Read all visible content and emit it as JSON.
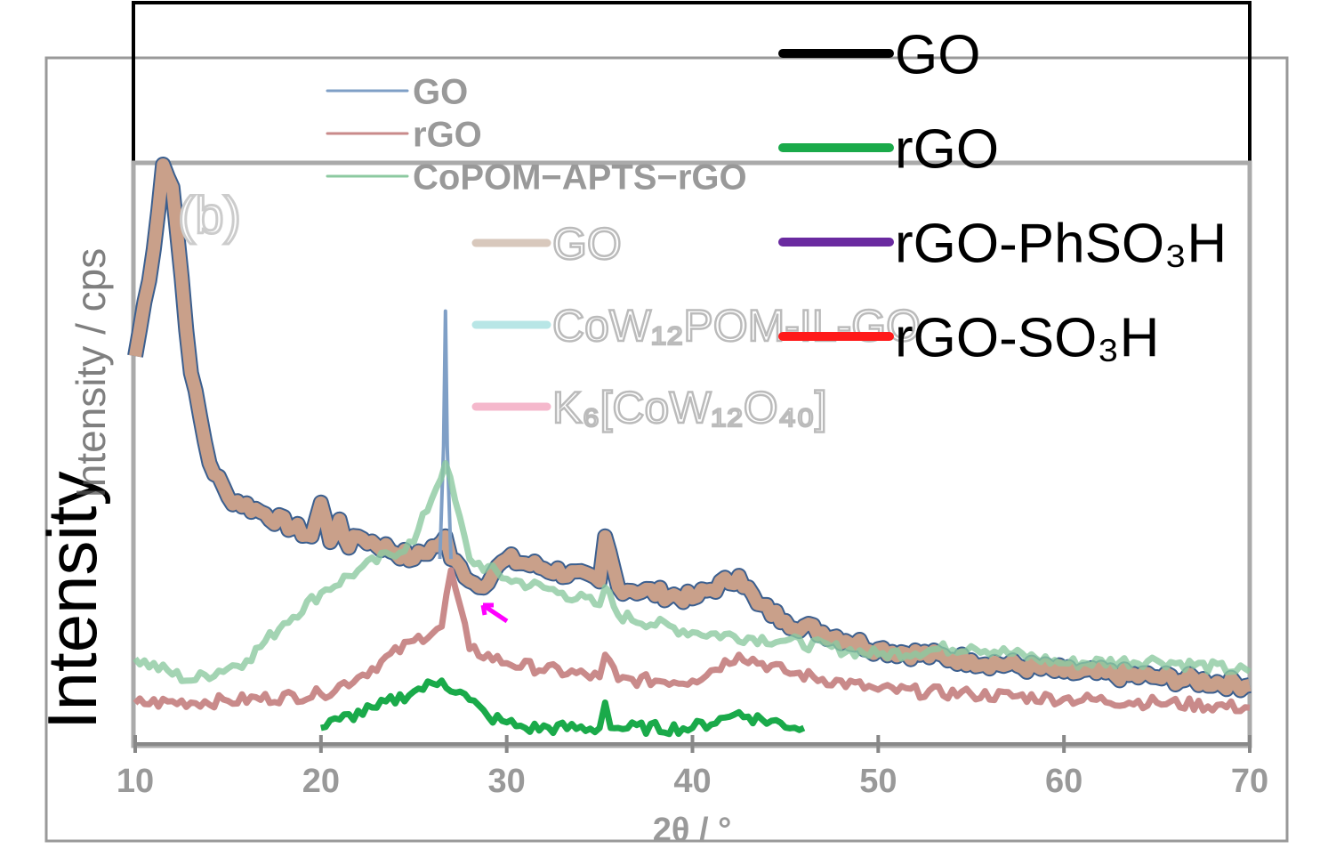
{
  "chart_data": {
    "type": "line",
    "panel_label": "(b)",
    "xlabel": "2θ / °",
    "ylabels": [
      "Intensity",
      "Intensity / cps"
    ],
    "xlim": [
      10,
      70
    ],
    "xticks": [
      "10",
      "20",
      "30",
      "40",
      "50",
      "60",
      "70"
    ],
    "ylim": [
      0,
      100
    ],
    "grid": false,
    "legends": [
      {
        "placement": "top-left",
        "style": "gray",
        "entries": [
          {
            "name": "GO",
            "color": "#7f9fc6"
          },
          {
            "name": "rGO",
            "color": "#c98a8a"
          },
          {
            "name": "CoPOM−APTS−rGO",
            "color": "#8cc9a0"
          }
        ]
      },
      {
        "placement": "top-center",
        "style": "outlined",
        "entries": [
          {
            "name": "GO",
            "color": "#d8c8bc"
          },
          {
            "name": "CoW₁₂POM-IL-GO",
            "color": "#b8e6e6"
          },
          {
            "name": "K₆[CoW₁₂O₄₀]",
            "color": "#f5b8cc"
          }
        ]
      },
      {
        "placement": "top-right",
        "style": "black",
        "entries": [
          {
            "name": "GO",
            "color": "#000000"
          },
          {
            "name": "rGO",
            "color": "#1aaa4a"
          },
          {
            "name": "rGO-PhSO₃H",
            "color": "#6a2aa0"
          },
          {
            "name": "rGO-SO₃H",
            "color": "#ff1a1a"
          }
        ]
      }
    ],
    "series": [
      {
        "color": "#c9a08a",
        "x": [
          10,
          11,
          11.5,
          12,
          12.5,
          13,
          14,
          15,
          17,
          19.5,
          20,
          20.5,
          21,
          21.5,
          22,
          25,
          26.5,
          26.7,
          27,
          28.5,
          30,
          35,
          35.3,
          36,
          40,
          42.5,
          43.5,
          45,
          50,
          55,
          60,
          65,
          70
        ],
        "y": [
          66,
          85,
          100,
          96,
          80,
          63,
          47,
          41,
          38,
          34,
          40,
          33,
          37,
          32,
          34,
          30,
          33,
          34,
          30,
          25,
          30,
          26,
          34,
          25,
          23,
          27,
          22,
          19,
          14,
          12,
          10,
          9,
          7.6
        ]
      },
      {
        "color": "#7f9fc6",
        "x": [
          26.4,
          26.6,
          26.7,
          26.8,
          27
        ],
        "y": [
          30,
          50,
          74,
          50,
          30
        ]
      },
      {
        "color": "#8cc9a0",
        "x": [
          10,
          13,
          16,
          18,
          20,
          22,
          25,
          26.7,
          28,
          30,
          33,
          35,
          35.3,
          36,
          40,
          45,
          50,
          55,
          60,
          65,
          70
        ],
        "y": [
          12.3,
          8.4,
          12,
          18.6,
          24,
          28,
          33,
          47,
          30,
          26.5,
          24,
          21.8,
          25,
          20,
          17,
          15.5,
          13,
          14.5,
          11.5,
          12,
          10
        ]
      },
      {
        "color": "#c98a8a",
        "x": [
          10,
          15,
          20,
          22,
          25,
          26.5,
          27,
          28,
          30,
          35,
          35.3,
          36,
          40,
          42.5,
          45,
          50,
          55,
          60,
          65,
          70
        ],
        "y": [
          4.4,
          4.8,
          6,
          9,
          15.5,
          18,
          28,
          14,
          11.5,
          9,
          13,
          8.5,
          8.4,
          13,
          10,
          6.8,
          6,
          5.2,
          4.5,
          3.6
        ]
      },
      {
        "color": "#1aaa4a",
        "x": [
          20,
          21,
          23,
          25,
          26.5,
          28,
          29,
          30,
          31,
          35,
          35.3,
          35.6,
          36,
          40,
          42,
          42.5,
          43,
          46
        ],
        "y": [
          0,
          1.5,
          3.6,
          6.5,
          8.4,
          5,
          2,
          1,
          0,
          0,
          4.5,
          0,
          0,
          0,
          2,
          2.8,
          2,
          0
        ]
      }
    ]
  }
}
